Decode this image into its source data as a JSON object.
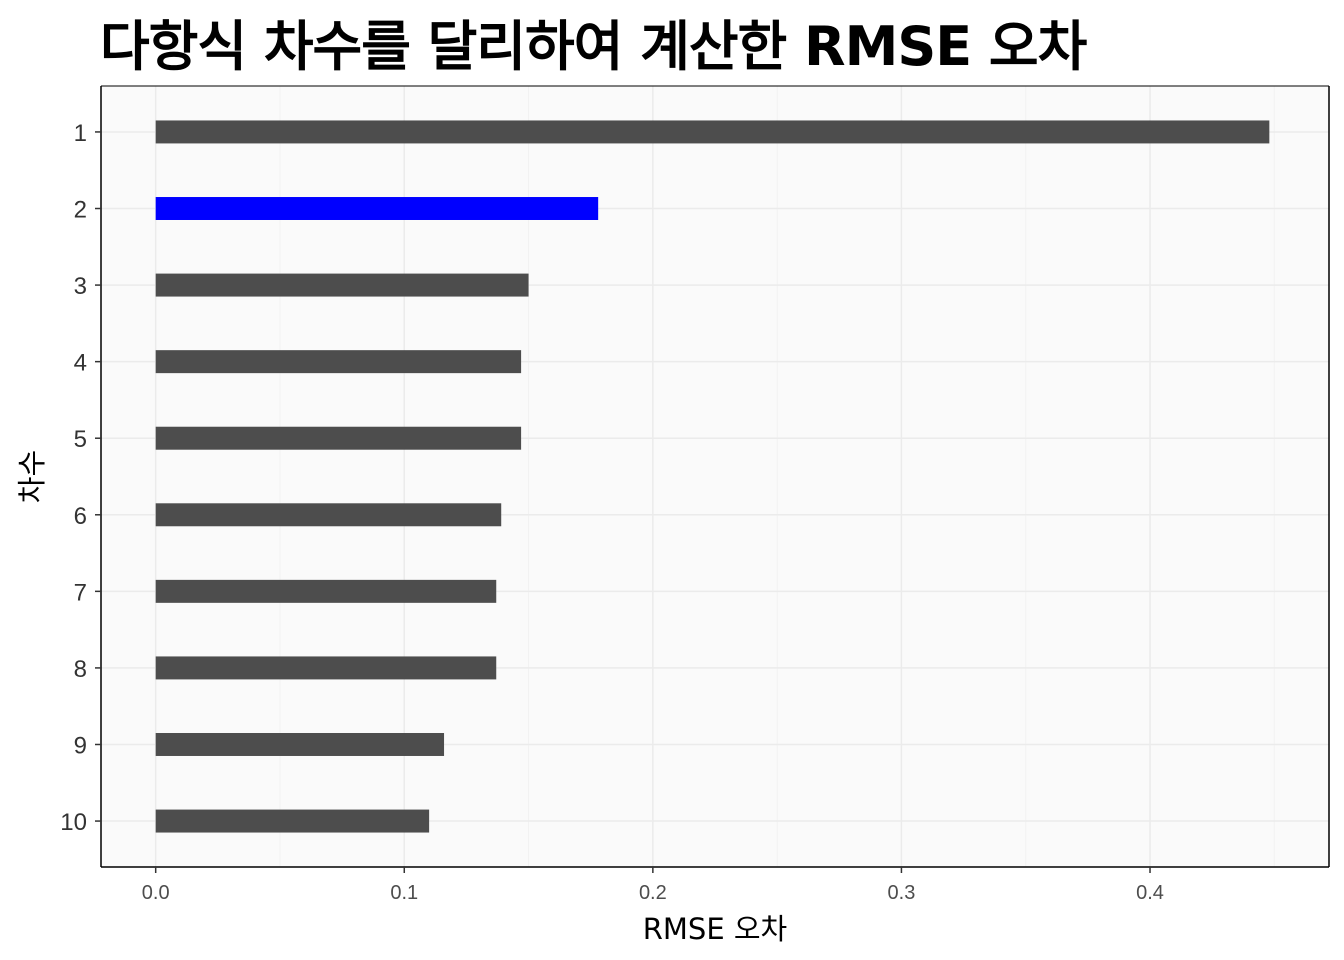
{
  "chart_data": {
    "type": "bar",
    "orientation": "horizontal",
    "title": "다항식 차수를 달리하여 계산한 RMSE 오차",
    "xlabel": "RMSE 오차",
    "ylabel": "차수",
    "categories": [
      "1",
      "2",
      "3",
      "4",
      "5",
      "6",
      "7",
      "8",
      "9",
      "10"
    ],
    "values": [
      0.448,
      0.178,
      0.15,
      0.147,
      0.147,
      0.139,
      0.137,
      0.137,
      0.116,
      0.11
    ],
    "highlight_category": "2",
    "xlim": [
      -0.022,
      0.472
    ],
    "xticks": [
      0.0,
      0.1,
      0.2,
      0.3,
      0.4
    ],
    "xtick_labels": [
      "0.0",
      "0.1",
      "0.2",
      "0.3",
      "0.4"
    ],
    "grid": true,
    "colors": {
      "bar": "#4d4d4d",
      "highlight": "#0000ff",
      "panel_background": "#fafafa",
      "grid_major": "#ebebeb",
      "grid_minor": "#f2f2f2",
      "axis_line": "#000000"
    }
  }
}
